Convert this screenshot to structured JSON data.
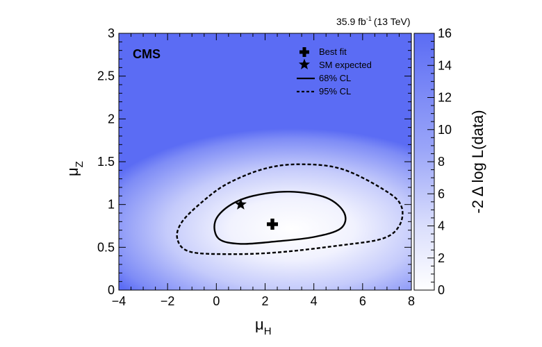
{
  "chart_data": {
    "type": "heatmap",
    "experiment": "CMS",
    "lumi_label": "35.9 fb",
    "lumi_sup": "-1",
    "energy_label": "(13 TeV)",
    "xlabel": {
      "main": "μ",
      "sub": "H"
    },
    "ylabel": {
      "main": "μ",
      "sub": "Z"
    },
    "zlabel": "-2 Δ log L(data)",
    "xlim": [
      -4,
      8
    ],
    "ylim": [
      0,
      3
    ],
    "zlim": [
      0,
      16
    ],
    "x_ticks": [
      "−4",
      "−2",
      "0",
      "2",
      "4",
      "6",
      "8"
    ],
    "x_tick_values": [
      -4,
      -2,
      0,
      2,
      4,
      6,
      8
    ],
    "y_ticks": [
      "0",
      "0.5",
      "1",
      "1.5",
      "2",
      "2.5",
      "3"
    ],
    "y_tick_values": [
      0,
      0.5,
      1,
      1.5,
      2,
      2.5,
      3
    ],
    "z_ticks": [
      "0",
      "2",
      "4",
      "6",
      "8",
      "10",
      "12",
      "14",
      "16"
    ],
    "z_tick_values": [
      0,
      2,
      4,
      6,
      8,
      10,
      12,
      14,
      16
    ],
    "colors": {
      "low": "#ffffff",
      "high": "#5b6cf4"
    },
    "best_fit": {
      "x": 2.3,
      "y": 0.77,
      "label": "Best fit"
    },
    "sm_expected": {
      "x": 1.0,
      "y": 1.0,
      "label": "SM expected"
    },
    "contours": [
      {
        "label": "68% CL",
        "style": "solid",
        "points": [
          [
            -0.05,
            0.8
          ],
          [
            0.5,
            0.98
          ],
          [
            1.5,
            1.1
          ],
          [
            3.0,
            1.15
          ],
          [
            4.5,
            1.08
          ],
          [
            5.25,
            0.9
          ],
          [
            5.1,
            0.72
          ],
          [
            4.0,
            0.62
          ],
          [
            2.5,
            0.57
          ],
          [
            1.0,
            0.54
          ],
          [
            0.1,
            0.6
          ],
          [
            -0.05,
            0.8
          ]
        ]
      },
      {
        "label": "95% CL",
        "style": "dashed",
        "points": [
          [
            -1.6,
            0.6
          ],
          [
            -1.4,
            0.8
          ],
          [
            -0.5,
            1.05
          ],
          [
            0.5,
            1.25
          ],
          [
            2.0,
            1.42
          ],
          [
            3.5,
            1.47
          ],
          [
            5.2,
            1.41
          ],
          [
            7.0,
            1.15
          ],
          [
            7.6,
            0.97
          ],
          [
            7.5,
            0.75
          ],
          [
            6.8,
            0.6
          ],
          [
            5.0,
            0.52
          ],
          [
            2.5,
            0.44
          ],
          [
            0.5,
            0.42
          ],
          [
            -1.1,
            0.45
          ],
          [
            -1.6,
            0.6
          ]
        ]
      }
    ]
  }
}
